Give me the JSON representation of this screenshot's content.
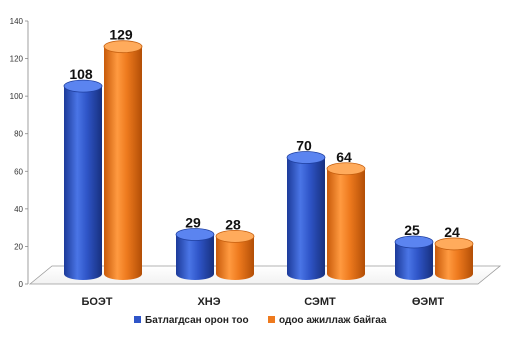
{
  "chart_data": {
    "type": "bar",
    "categories": [
      "БОЭТ",
      "ХНЭ",
      "СЭМТ",
      "ӨЭМТ"
    ],
    "series": [
      {
        "name": "Батлагдсан орон тоо",
        "values": [
          108,
          29,
          70,
          25
        ],
        "color": "#2f55c8"
      },
      {
        "name": "одоо ажиллаж байгаа",
        "values": [
          129,
          28,
          64,
          24
        ],
        "color": "#ee7a1e"
      }
    ],
    "ylim": [
      0,
      140
    ],
    "yticks": [
      0,
      20,
      40,
      60,
      80,
      100,
      120,
      140
    ],
    "legend_position": "bottom",
    "grid": false,
    "style": "3d-cylinder"
  }
}
